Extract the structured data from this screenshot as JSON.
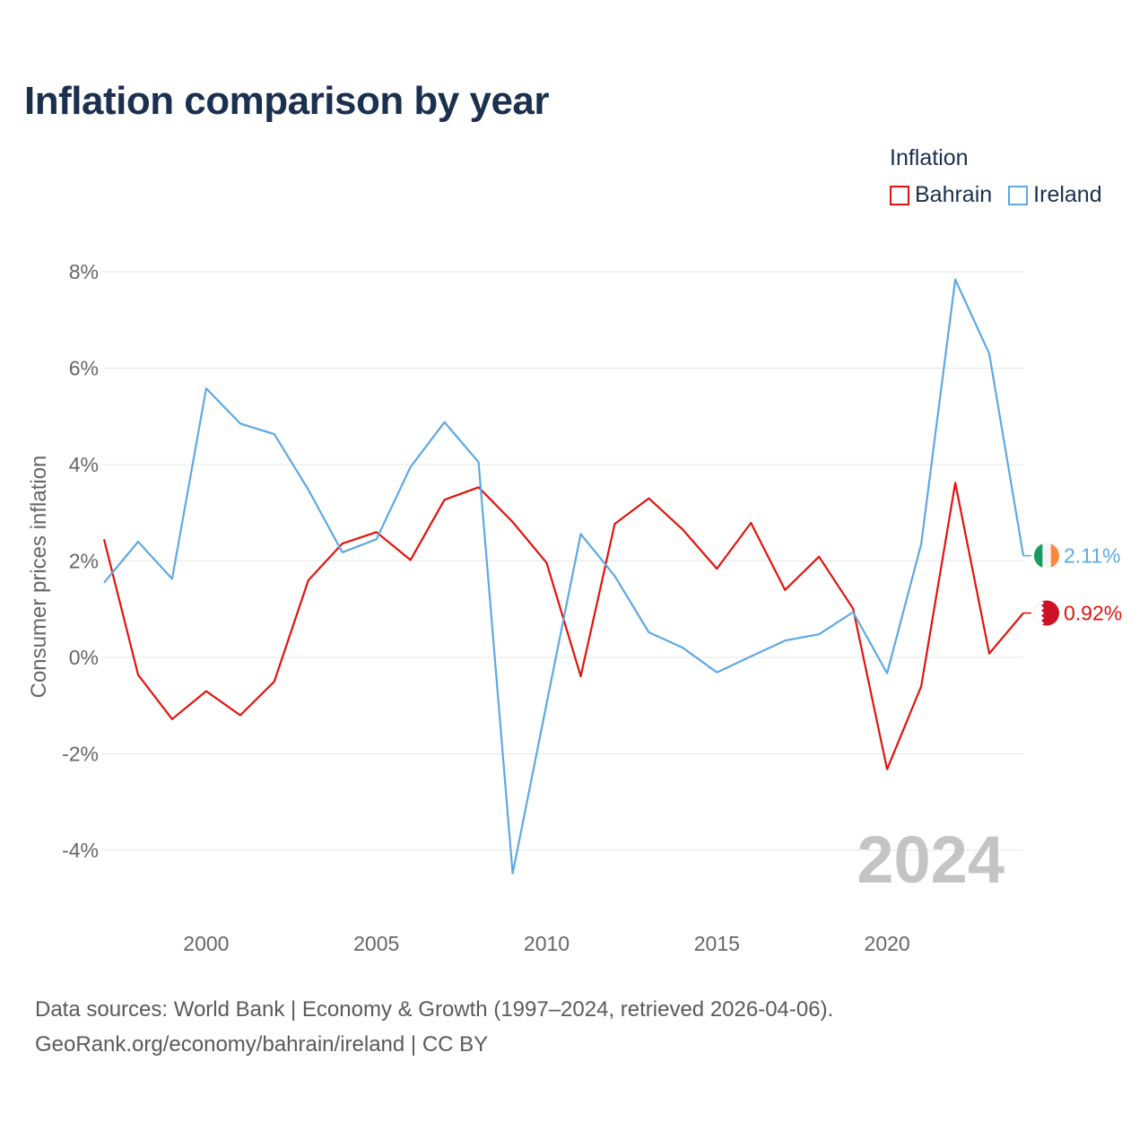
{
  "chart_data": {
    "type": "line",
    "title": "Inflation comparison by year",
    "ylabel": "Consumer prices inflation",
    "xlabel": "",
    "xlim": [
      1997,
      2024
    ],
    "ylim": [
      -5,
      8.5
    ],
    "yticks": [
      -4,
      -2,
      0,
      2,
      4,
      6,
      8
    ],
    "ytick_labels": [
      "-4%",
      "-2%",
      "0%",
      "2%",
      "4%",
      "6%",
      "8%"
    ],
    "xticks": [
      2000,
      2005,
      2010,
      2015,
      2020
    ],
    "xtick_labels": [
      "2000",
      "2005",
      "2010",
      "2015",
      "2020"
    ],
    "legend_title": "Inflation",
    "legend_position": "top-right",
    "grid": true,
    "watermark_year": "2024",
    "x": [
      1997,
      1998,
      1999,
      2000,
      2001,
      2002,
      2003,
      2004,
      2005,
      2006,
      2007,
      2008,
      2009,
      2010,
      2011,
      2012,
      2013,
      2014,
      2015,
      2016,
      2017,
      2018,
      2019,
      2020,
      2021,
      2022,
      2023,
      2024
    ],
    "series": [
      {
        "name": "Bahrain",
        "color": "#e3120b",
        "end_label": "0.92%",
        "flag": "bahrain-flag",
        "values": [
          2.45,
          -0.36,
          -1.28,
          -0.7,
          -1.2,
          -0.5,
          1.6,
          2.36,
          2.6,
          2.02,
          3.27,
          3.53,
          2.81,
          1.96,
          -0.39,
          2.77,
          3.3,
          2.65,
          1.84,
          2.79,
          1.4,
          2.09,
          1.01,
          -2.32,
          -0.6,
          3.62,
          0.08,
          0.92
        ]
      },
      {
        "name": "Ireland",
        "color": "#5ea8e3",
        "end_label": "2.11%",
        "flag": "ireland-flag",
        "values": [
          1.55,
          2.4,
          1.63,
          5.58,
          4.85,
          4.63,
          3.48,
          2.18,
          2.45,
          3.95,
          4.88,
          4.05,
          -4.48,
          -0.95,
          2.56,
          1.69,
          0.52,
          0.2,
          -0.31,
          0.02,
          0.35,
          0.48,
          0.94,
          -0.33,
          2.35,
          7.84,
          6.3,
          2.11
        ]
      }
    ]
  },
  "footer": {
    "line1": "Data sources: World Bank | Economy & Growth (1997–2024, retrieved 2026-04-06).",
    "line2": "GeoRank.org/economy/bahrain/ireland | CC BY"
  }
}
